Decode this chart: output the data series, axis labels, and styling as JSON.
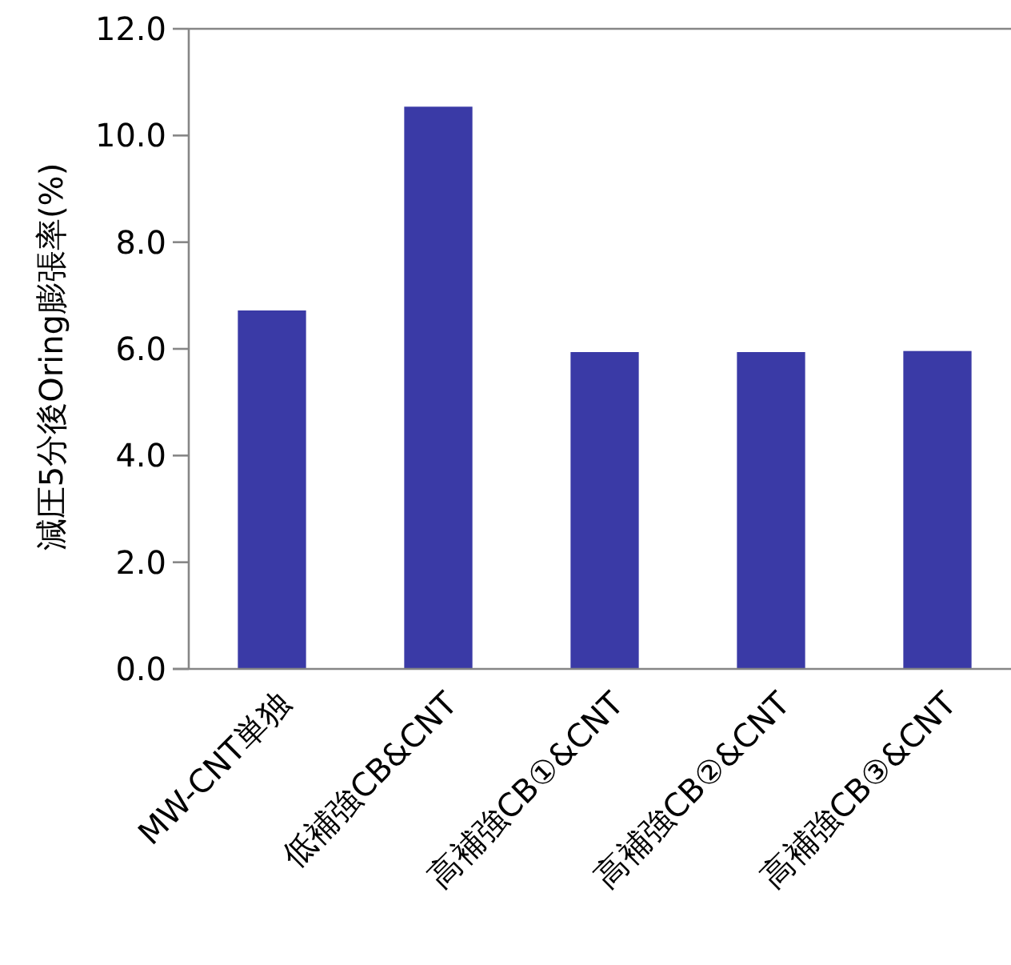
{
  "chart_data": {
    "type": "bar",
    "ylabel": "減圧5分後Oring膨張率(%)",
    "categories": [
      "MW-CNT単独",
      "低補強CB&CNT",
      "高補強CB①&CNT",
      "高補強CB②&CNT",
      "高補強CB③&CNT"
    ],
    "values": [
      6.72,
      10.54,
      5.94,
      5.94,
      5.96
    ],
    "color": "#3a3aa6",
    "ylim": [
      0,
      12
    ],
    "yticks": [
      {
        "value": 0,
        "label": "0.0"
      },
      {
        "value": 2,
        "label": "2.0"
      },
      {
        "value": 4,
        "label": "4.0"
      },
      {
        "value": 6,
        "label": "6.0"
      },
      {
        "value": 8,
        "label": "8.0"
      },
      {
        "value": 10,
        "label": "10.0"
      },
      {
        "value": 12,
        "label": "12.0"
      }
    ]
  }
}
